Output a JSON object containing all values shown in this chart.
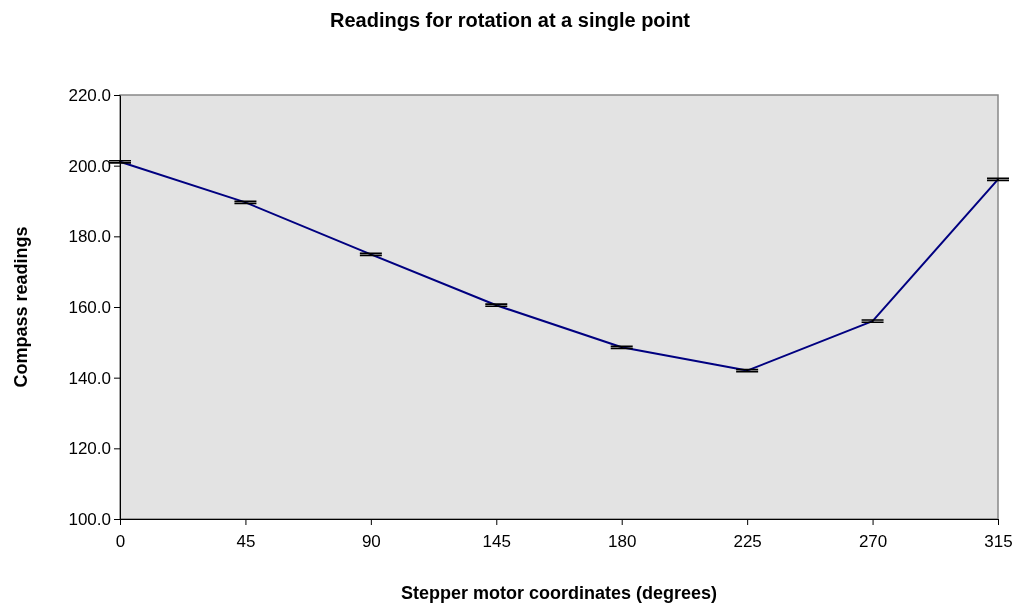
{
  "chart_data": {
    "type": "line",
    "title": "Readings for rotation at a single point",
    "xlabel": "Stepper motor coordinates (degrees)",
    "ylabel": "Compass readings",
    "categories": [
      "0",
      "45",
      "90",
      "145",
      "180",
      "225",
      "270",
      "315"
    ],
    "series": [
      {
        "color": "#000080",
        "values": [
          201.1,
          189.6,
          174.9,
          160.5,
          148.6,
          142.0,
          156.0,
          196.1
        ],
        "errors": [
          0.3,
          0.3,
          0.3,
          0.3,
          0.3,
          0.3,
          0.3,
          0.3
        ]
      }
    ],
    "ylim": [
      100,
      220
    ],
    "yticks": [
      {
        "value": 100,
        "label": "100.0"
      },
      {
        "value": 120,
        "label": "120.0"
      },
      {
        "value": 140,
        "label": "140.0"
      },
      {
        "value": 160,
        "label": "160.0"
      },
      {
        "value": 180,
        "label": "180.0"
      },
      {
        "value": 200,
        "label": "200.0"
      },
      {
        "value": 220,
        "label": "220.0"
      }
    ],
    "grid": false,
    "marker": "none",
    "line_style": "solid"
  }
}
